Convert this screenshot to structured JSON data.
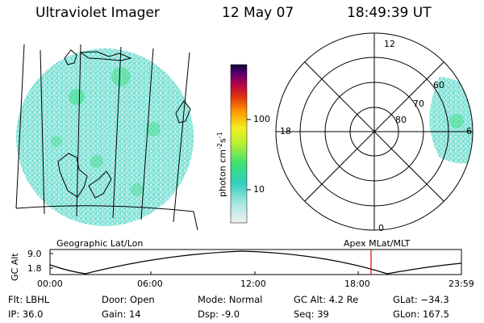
{
  "header": {
    "title": "Ultraviolet Imager",
    "date": "12 May 07",
    "time": "18:49:39 UT"
  },
  "colorbar": {
    "label_main": "photon cm",
    "label_sup1": "-2",
    "label_mid": "s",
    "label_sup2": "-1",
    "ticks": [
      "100",
      "10"
    ]
  },
  "polar_plot": {
    "mlt_labels": {
      "top": "12",
      "left": "18",
      "right": "6",
      "bottom": "0"
    },
    "mlat_labels": [
      "60",
      "70",
      "80"
    ]
  },
  "panel_titles": {
    "left": "Geographic Lat/Lon",
    "right": "Apex  MLat/MLT"
  },
  "altitude_plot": {
    "ylabel": "GC Alt",
    "yticks": [
      "9.0",
      "1.8"
    ],
    "xticks": [
      "00:00",
      "06:00",
      "12:00",
      "18:00",
      "23:59"
    ],
    "marker_time": "18:49"
  },
  "info": {
    "flt": "Flt: LBHL",
    "ip": "IP: 36.0",
    "door": "Door: Open",
    "gain": "Gain: 14",
    "mode": "Mode: Normal",
    "dsp": "Dsp:   -9.0",
    "gcalt": "GC Alt: 4.2 Re",
    "seq": "Seq: 39",
    "glat": "GLat: −34.3",
    "glon": "GLon: 167.5"
  },
  "colors": {
    "aurora_cyan": "#7fe3d8",
    "aurora_green": "#3ddc84",
    "marker_red": "#e00000"
  }
}
